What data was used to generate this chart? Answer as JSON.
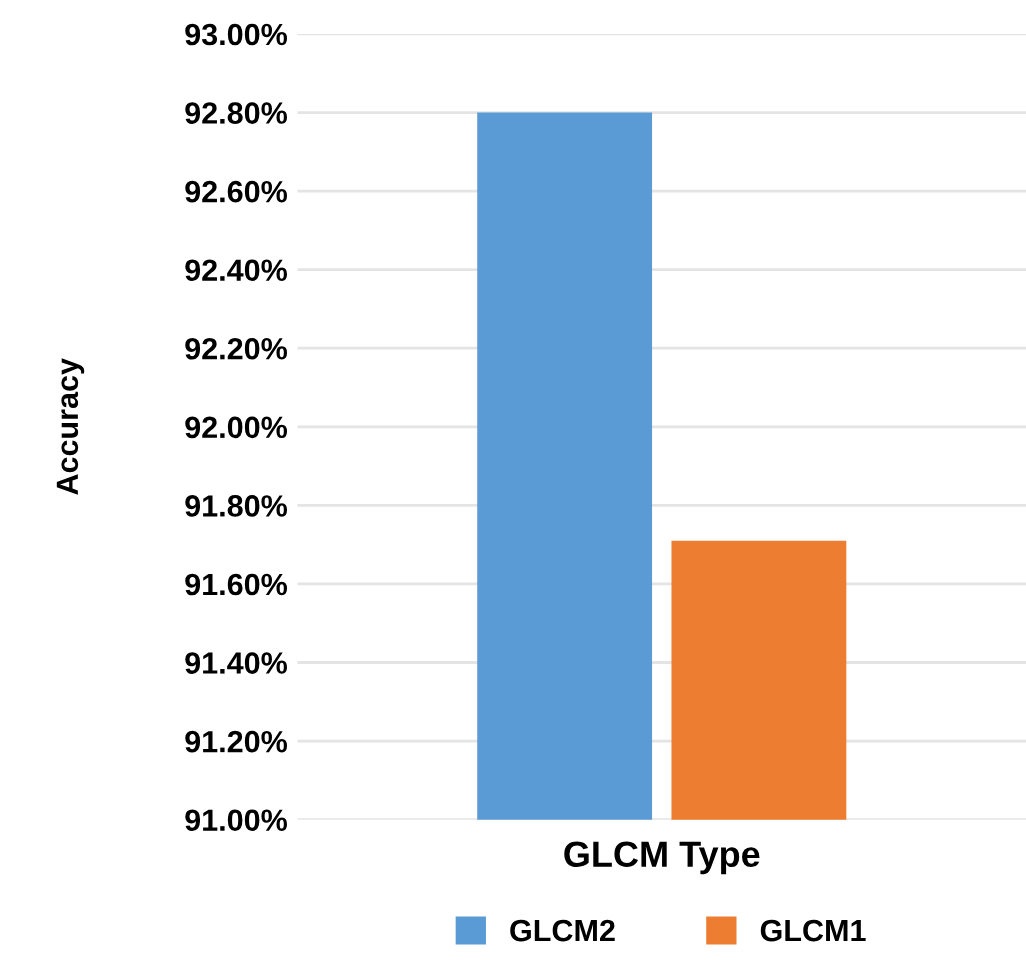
{
  "chart_data": {
    "type": "bar",
    "xlabel": "GLCM Type",
    "ylabel": "Accuracy",
    "categories": [
      null
    ],
    "series": [
      {
        "name": "GLCM2",
        "color": "#5b9bd5",
        "values": [
          92.8
        ]
      },
      {
        "name": "GLCM1",
        "color": "#ed7d31",
        "values": [
          91.71
        ]
      }
    ],
    "ylim": [
      91.0,
      93.0
    ],
    "yticks": [
      {
        "value": 91.0,
        "label": "91.00%"
      },
      {
        "value": 91.2,
        "label": "91.20%"
      },
      {
        "value": 91.4,
        "label": "91.40%"
      },
      {
        "value": 91.6,
        "label": "91.60%"
      },
      {
        "value": 91.8,
        "label": "91.80%"
      },
      {
        "value": 92.0,
        "label": "92.00%"
      },
      {
        "value": 92.2,
        "label": "92.20%"
      },
      {
        "value": 92.4,
        "label": "92.40%"
      },
      {
        "value": 92.6,
        "label": "92.60%"
      },
      {
        "value": 92.8,
        "label": "92.80%"
      },
      {
        "value": 93.0,
        "label": "93.00%"
      }
    ],
    "grid": "y",
    "legend": "bottom"
  }
}
